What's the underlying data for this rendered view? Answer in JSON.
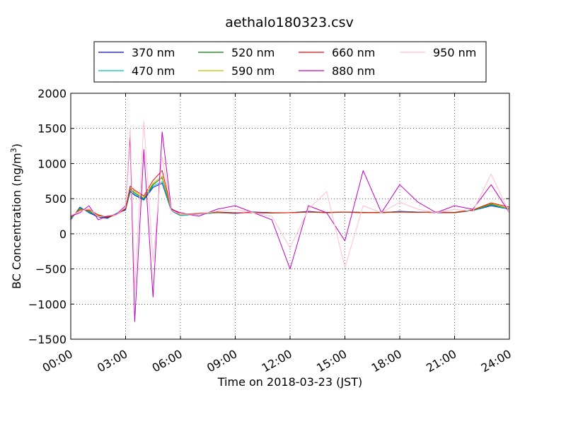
{
  "chart_data": {
    "type": "line",
    "title": "aethalo180323.csv",
    "xlabel": "Time on 2018-03-23 (JST)",
    "ylabel_main": "BC Concentration (ng/m",
    "ylabel_sup": "3",
    "ylabel_end": ")",
    "xlim_hours": [
      0,
      24
    ],
    "ylim": [
      -1500,
      2000
    ],
    "x_ticks": [
      {
        "hour": 0,
        "label": "00:00"
      },
      {
        "hour": 3,
        "label": "03:00"
      },
      {
        "hour": 6,
        "label": "06:00"
      },
      {
        "hour": 9,
        "label": "09:00"
      },
      {
        "hour": 12,
        "label": "12:00"
      },
      {
        "hour": 15,
        "label": "15:00"
      },
      {
        "hour": 18,
        "label": "18:00"
      },
      {
        "hour": 21,
        "label": "21:00"
      },
      {
        "hour": 24,
        "label": "24:00"
      }
    ],
    "y_ticks": [
      {
        "value": 2000,
        "label": "2000"
      },
      {
        "value": 1500,
        "label": "1500"
      },
      {
        "value": 1000,
        "label": "1000"
      },
      {
        "value": 500,
        "label": "500"
      },
      {
        "value": 0,
        "label": "0"
      },
      {
        "value": -500,
        "label": "−500"
      },
      {
        "value": -1000,
        "label": "−1000"
      },
      {
        "value": -1500,
        "label": "−1500"
      }
    ],
    "grid": true,
    "legend_position": "top-center",
    "legend_columns": 4,
    "series": [
      {
        "name": "370 nm",
        "color": "#0000ff",
        "x": [
          0,
          0.5,
          1,
          1.5,
          2,
          2.5,
          3,
          3.25,
          3.5,
          4,
          4.5,
          5,
          5.5,
          6,
          7,
          8,
          9,
          10,
          11,
          12,
          13,
          14,
          15,
          16,
          17,
          18,
          19,
          20,
          21,
          22,
          23,
          24
        ],
        "y": [
          200,
          380,
          300,
          240,
          220,
          290,
          340,
          600,
          550,
          480,
          660,
          720,
          330,
          260,
          280,
          300,
          290,
          310,
          300,
          300,
          320,
          300,
          310,
          300,
          300,
          320,
          310,
          300,
          300,
          330,
          400,
          350
        ]
      },
      {
        "name": "470 nm",
        "color": "#00bfbf",
        "x": [
          0,
          0.5,
          1,
          1.5,
          2,
          2.5,
          3,
          3.25,
          3.5,
          4,
          4.5,
          5,
          5.5,
          6,
          7,
          8,
          9,
          10,
          11,
          12,
          13,
          14,
          15,
          16,
          17,
          18,
          19,
          20,
          21,
          22,
          23,
          24
        ],
        "y": [
          210,
          370,
          310,
          250,
          230,
          290,
          350,
          620,
          560,
          490,
          680,
          740,
          340,
          260,
          280,
          300,
          295,
          305,
          300,
          300,
          315,
          300,
          310,
          305,
          305,
          315,
          310,
          305,
          305,
          330,
          410,
          350
        ]
      },
      {
        "name": "520 nm",
        "color": "#008000",
        "x": [
          0,
          0.5,
          1,
          1.5,
          2,
          2.5,
          3,
          3.25,
          3.5,
          4,
          4.5,
          5,
          5.5,
          6,
          7,
          8,
          9,
          10,
          11,
          12,
          13,
          14,
          15,
          16,
          17,
          18,
          19,
          20,
          21,
          22,
          23,
          24
        ],
        "y": [
          220,
          360,
          320,
          260,
          230,
          280,
          350,
          640,
          580,
          500,
          700,
          800,
          340,
          270,
          285,
          305,
          300,
          300,
          295,
          300,
          310,
          300,
          310,
          305,
          300,
          310,
          305,
          305,
          300,
          335,
          420,
          360
        ]
      },
      {
        "name": "590 nm",
        "color": "#bfbf00",
        "x": [
          0,
          0.5,
          1,
          1.5,
          2,
          2.5,
          3,
          3.25,
          3.5,
          4,
          4.5,
          5,
          5.5,
          6,
          7,
          8,
          9,
          10,
          11,
          12,
          13,
          14,
          15,
          16,
          17,
          18,
          19,
          20,
          21,
          22,
          23,
          24
        ],
        "y": [
          230,
          350,
          330,
          260,
          240,
          280,
          360,
          660,
          600,
          520,
          720,
          820,
          350,
          270,
          290,
          305,
          300,
          300,
          300,
          300,
          310,
          305,
          310,
          300,
          305,
          310,
          305,
          305,
          305,
          340,
          430,
          360
        ]
      },
      {
        "name": "660 nm",
        "color": "#ff0000",
        "x": [
          0,
          0.5,
          1,
          1.5,
          2,
          2.5,
          3,
          3.25,
          3.5,
          4,
          4.5,
          5,
          5.5,
          6,
          7,
          8,
          9,
          10,
          11,
          12,
          13,
          14,
          15,
          16,
          17,
          18,
          19,
          20,
          21,
          22,
          23,
          24
        ],
        "y": [
          240,
          340,
          340,
          270,
          240,
          270,
          360,
          680,
          620,
          540,
          760,
          900,
          360,
          280,
          290,
          310,
          300,
          300,
          300,
          300,
          310,
          305,
          310,
          300,
          305,
          310,
          305,
          310,
          305,
          340,
          440,
          380
        ]
      },
      {
        "name": "880 nm",
        "color": "#bf00bf",
        "x": [
          0,
          0.5,
          1,
          1.5,
          2,
          2.5,
          3,
          3.25,
          3.5,
          4,
          4.5,
          5,
          5.5,
          6,
          7,
          8,
          9,
          10,
          11,
          12,
          13,
          14,
          15,
          16,
          17,
          18,
          19,
          20,
          21,
          22,
          23,
          24
        ],
        "y": [
          250,
          300,
          400,
          200,
          250,
          280,
          400,
          1400,
          -1250,
          1200,
          -900,
          1450,
          350,
          300,
          250,
          350,
          400,
          300,
          200,
          -500,
          400,
          300,
          -100,
          900,
          300,
          700,
          450,
          300,
          400,
          350,
          700,
          300
        ]
      },
      {
        "name": "950 nm",
        "color": "#ffc0cb",
        "x": [
          0,
          0.5,
          1,
          1.5,
          2,
          2.5,
          3,
          3.25,
          3.5,
          4,
          4.5,
          5,
          5.5,
          6,
          7,
          8,
          9,
          10,
          11,
          12,
          13,
          14,
          15,
          16,
          17,
          18,
          19,
          20,
          21,
          22,
          23,
          24
        ],
        "y": [
          260,
          320,
          360,
          240,
          260,
          270,
          380,
          1500,
          -800,
          1600,
          -400,
          1100,
          330,
          280,
          280,
          320,
          350,
          300,
          250,
          -200,
          350,
          600,
          -480,
          400,
          300,
          450,
          350,
          300,
          350,
          320,
          850,
          300
        ]
      }
    ]
  }
}
